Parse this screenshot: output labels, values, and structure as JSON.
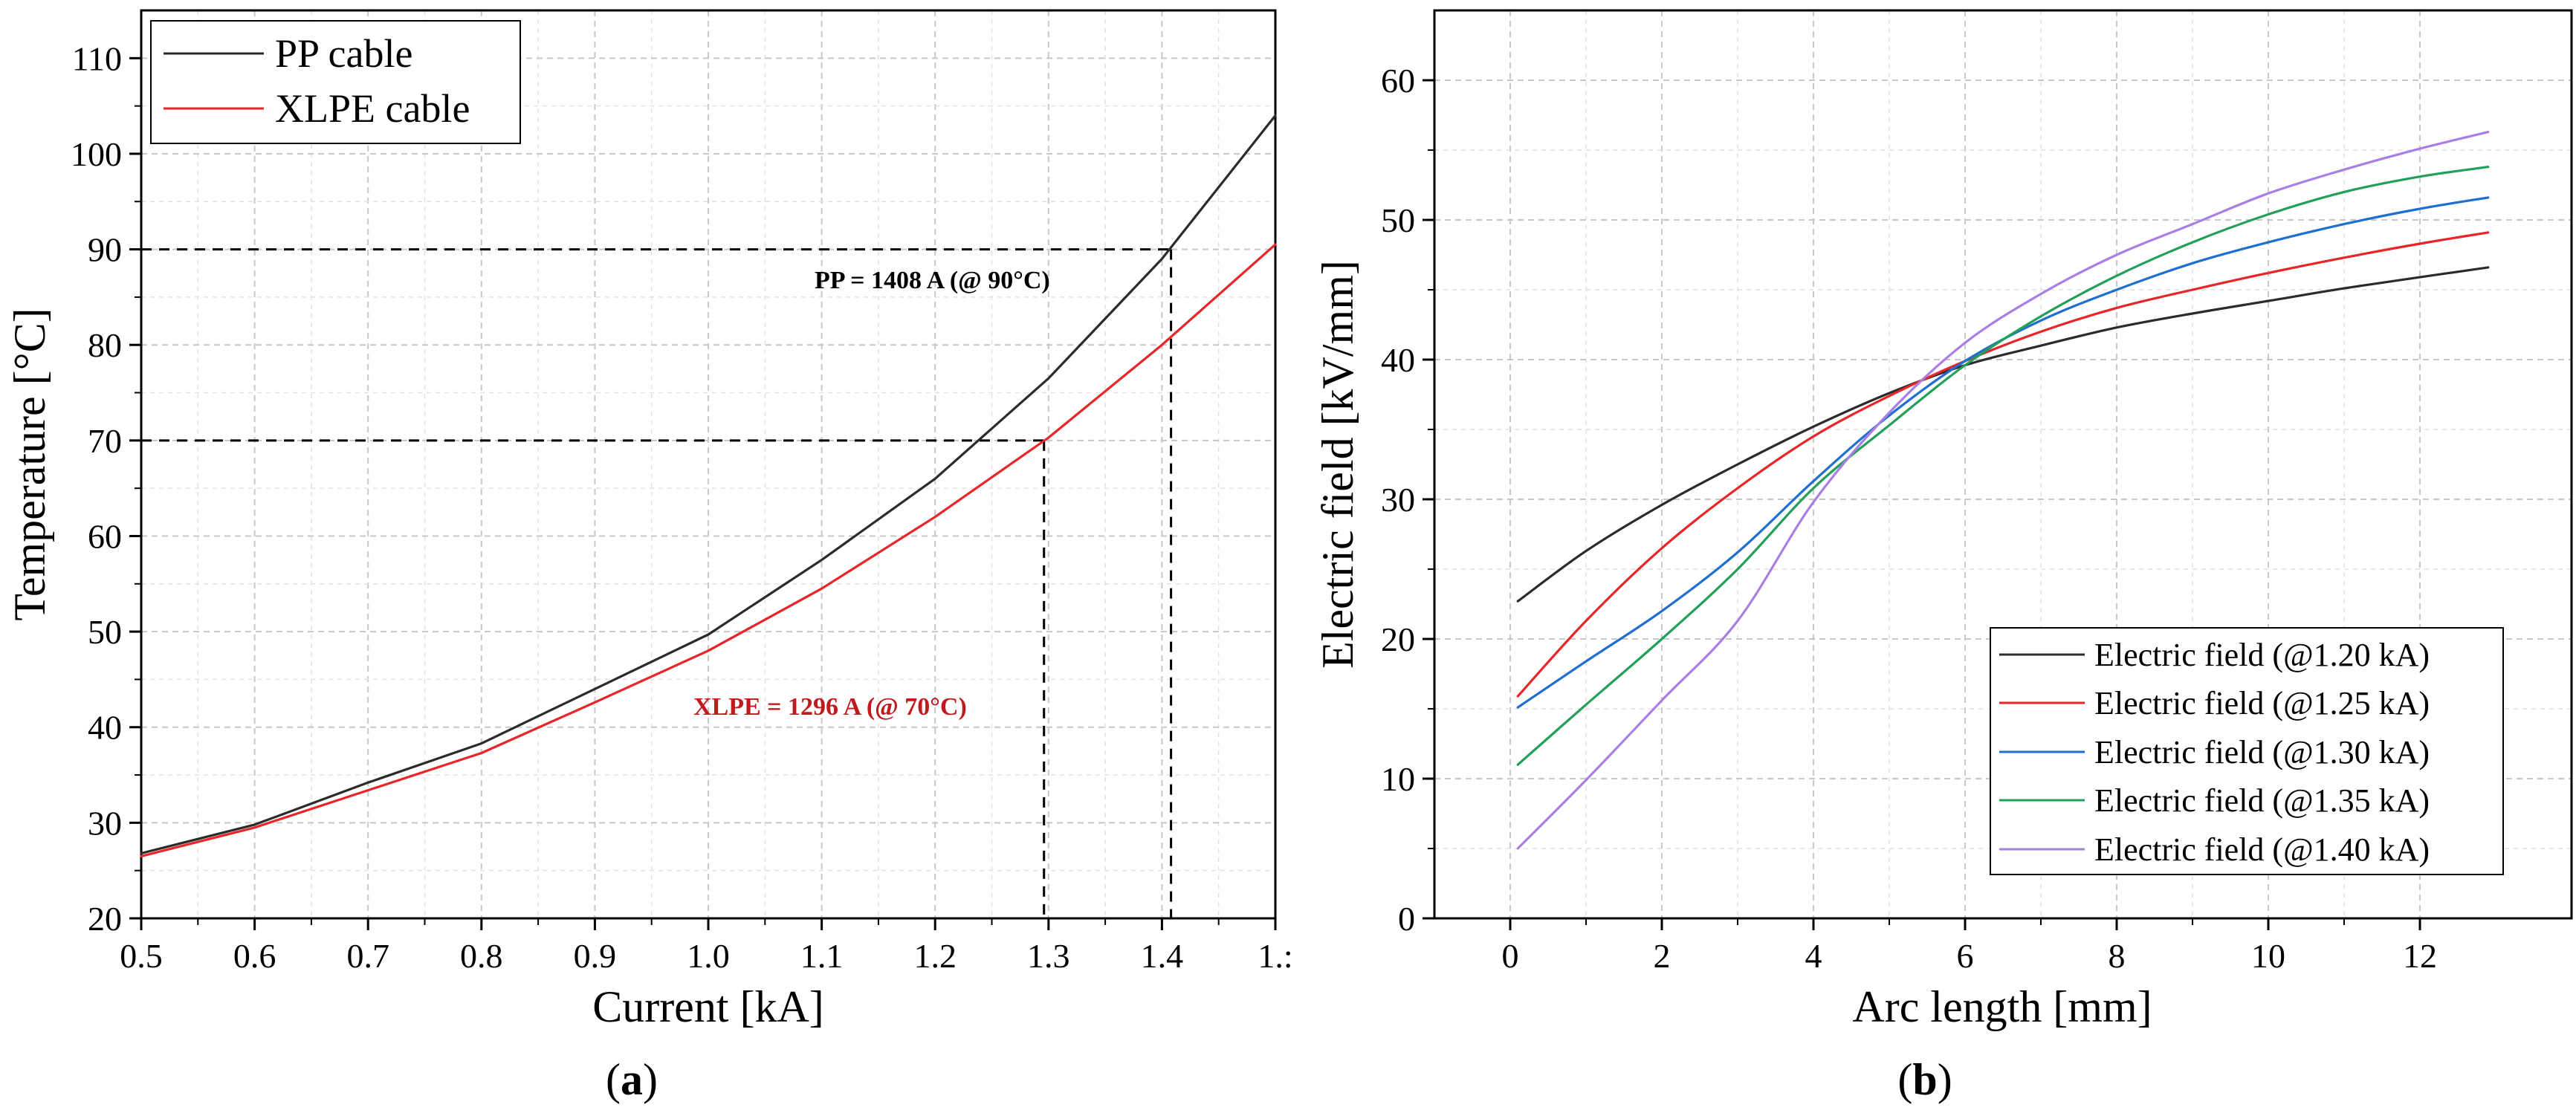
{
  "chart_data": [
    {
      "panel": "a",
      "type": "line",
      "xlabel": "Current [kA]",
      "ylabel": "Temperature [°C]",
      "xlim": [
        0.5,
        1.5
      ],
      "ylim": [
        20,
        115
      ],
      "x_tick_values": [
        0.5,
        0.6,
        0.7,
        0.8,
        0.9,
        1.0,
        1.1,
        1.2,
        1.3,
        1.4,
        1.5
      ],
      "x_tick_labels": [
        "0.5",
        "0.6",
        "0.7",
        "0.8",
        "0.9",
        "1.0",
        "1.1",
        "1.2",
        "1.3",
        "1.4",
        "1.:"
      ],
      "y_tick_values": [
        20,
        30,
        40,
        50,
        60,
        70,
        80,
        90,
        100,
        110
      ],
      "y_tick_labels": [
        "20",
        "30",
        "40",
        "50",
        "60",
        "70",
        "80",
        "90",
        "100",
        "110"
      ],
      "grid": true,
      "legend_position": "top-left",
      "series": [
        {
          "name": "PP cable",
          "color": "#2b2b2b",
          "x": [
            0.5,
            0.6,
            0.7,
            0.8,
            0.9,
            1.0,
            1.1,
            1.2,
            1.3,
            1.4,
            1.5
          ],
          "y": [
            26.8,
            29.8,
            34.2,
            38.3,
            44.0,
            49.7,
            57.5,
            66.0,
            76.5,
            89.0,
            104.0
          ]
        },
        {
          "name": "XLPE cable",
          "color": "#e8262a",
          "x": [
            0.5,
            0.6,
            0.7,
            0.8,
            0.9,
            1.0,
            1.1,
            1.2,
            1.3,
            1.4,
            1.5
          ],
          "y": [
            26.5,
            29.5,
            33.4,
            37.3,
            42.6,
            48.0,
            54.5,
            62.0,
            70.3,
            80.0,
            90.5
          ]
        }
      ],
      "reference_lines": [
        {
          "y": 90,
          "x": 1.408,
          "label": "PP = 1408 A (@ 90°C)",
          "label_color": "#000000"
        },
        {
          "y": 70,
          "x": 1.296,
          "label": "XLPE = 1296 A (@ 70°C)",
          "label_color": "#c01a1f"
        }
      ],
      "panel_label": "a"
    },
    {
      "panel": "b",
      "type": "line",
      "xlabel": "Arc length [mm]",
      "ylabel": "Electric field [kV/mm]",
      "xlim": [
        -1,
        14
      ],
      "ylim": [
        0,
        65
      ],
      "x_tick_values": [
        0,
        2,
        4,
        6,
        8,
        10,
        12
      ],
      "x_tick_labels": [
        "0",
        "2",
        "4",
        "6",
        "8",
        "10",
        "12"
      ],
      "y_tick_values": [
        0,
        10,
        20,
        30,
        40,
        50,
        60
      ],
      "y_tick_labels": [
        "0",
        "10",
        "20",
        "30",
        "40",
        "50",
        "60"
      ],
      "grid": true,
      "legend_position": "bottom-right",
      "series": [
        {
          "name": "Electric field (@1.20 kA)",
          "color": "#2b2b2b",
          "x": [
            0.1,
            1,
            2,
            3,
            4,
            5,
            6,
            7,
            8,
            9,
            10,
            11,
            12,
            12.9
          ],
          "y": [
            22.7,
            26.3,
            29.6,
            32.5,
            35.2,
            37.6,
            39.6,
            41.0,
            42.3,
            43.3,
            44.2,
            45.1,
            45.9,
            46.6
          ]
        },
        {
          "name": "Electric field (@1.25 kA)",
          "color": "#e8262a",
          "x": [
            0.1,
            1,
            2,
            3,
            4,
            5,
            6,
            7,
            8,
            9,
            10,
            11,
            12,
            12.9
          ],
          "y": [
            15.9,
            21.3,
            26.5,
            30.8,
            34.5,
            37.4,
            39.9,
            42.0,
            43.7,
            45.0,
            46.2,
            47.3,
            48.3,
            49.1
          ]
        },
        {
          "name": "Electric field (@1.30 kA)",
          "color": "#1f6fd1",
          "x": [
            0.1,
            1,
            2,
            3,
            4,
            5,
            6,
            7,
            8,
            9,
            10,
            11,
            12,
            12.9
          ],
          "y": [
            15.1,
            18.4,
            22.0,
            26.2,
            31.3,
            36.0,
            39.9,
            42.8,
            45.0,
            46.9,
            48.4,
            49.7,
            50.8,
            51.6
          ]
        },
        {
          "name": "Electric field (@1.35 kA)",
          "color": "#22a05a",
          "x": [
            0.1,
            1,
            2,
            3,
            4,
            5,
            6,
            7,
            8,
            9,
            10,
            11,
            12,
            12.9
          ],
          "y": [
            11.0,
            15.3,
            20.0,
            25.0,
            30.8,
            35.3,
            39.6,
            43.1,
            46.0,
            48.4,
            50.4,
            52.0,
            53.1,
            53.8
          ]
        },
        {
          "name": "Electric field (@1.40 kA)",
          "color": "#a97fe3",
          "x": [
            0.1,
            1,
            2,
            3,
            4,
            5,
            6,
            7,
            8,
            9,
            10,
            11,
            12,
            12.9
          ],
          "y": [
            5.0,
            9.9,
            15.6,
            21.3,
            29.8,
            36.2,
            41.2,
            44.7,
            47.5,
            49.7,
            51.9,
            53.6,
            55.1,
            56.3
          ]
        }
      ],
      "panel_label": "b"
    }
  ]
}
